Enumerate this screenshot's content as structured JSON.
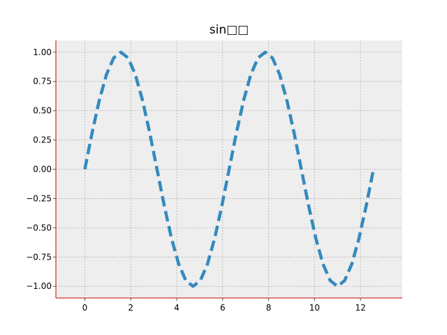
{
  "chart_data": {
    "type": "line",
    "title": "sin□□",
    "xlabel": "",
    "ylabel": "",
    "xlim": [
      -1.26,
      13.82
    ],
    "ylim": [
      -1.1,
      1.1
    ],
    "x_ticks": [
      0,
      2,
      4,
      6,
      8,
      10,
      12
    ],
    "x_tick_labels": [
      "0",
      "2",
      "4",
      "6",
      "8",
      "10",
      "12"
    ],
    "y_ticks": [
      -1.0,
      -0.75,
      -0.5,
      -0.25,
      0.0,
      0.25,
      0.5,
      0.75,
      1.0
    ],
    "y_tick_labels": [
      "−1.00",
      "−0.75",
      "−0.50",
      "−0.25",
      "0.00",
      "0.25",
      "0.50",
      "0.75",
      "1.00"
    ],
    "grid": true,
    "line_style": "dashed",
    "series": [
      {
        "color": "#348abd",
        "x": [
          0.0,
          0.314,
          0.628,
          0.942,
          1.257,
          1.571,
          1.885,
          2.199,
          2.513,
          2.827,
          3.142,
          3.456,
          3.77,
          4.084,
          4.398,
          4.712,
          5.027,
          5.341,
          5.655,
          5.969,
          6.283,
          6.597,
          6.912,
          7.226,
          7.54,
          7.854,
          8.168,
          8.482,
          8.796,
          9.111,
          9.425,
          9.739,
          10.053,
          10.367,
          10.681,
          10.996,
          11.31,
          11.624,
          11.938,
          12.252,
          12.566
        ],
        "values": [
          0.0,
          0.309,
          0.588,
          0.809,
          0.951,
          1.0,
          0.951,
          0.809,
          0.588,
          0.309,
          0.0,
          -0.309,
          -0.588,
          -0.809,
          -0.951,
          -1.0,
          -0.951,
          -0.809,
          -0.588,
          -0.309,
          0.0,
          0.309,
          0.588,
          0.809,
          0.951,
          1.0,
          0.951,
          0.809,
          0.588,
          0.309,
          0.0,
          -0.309,
          -0.588,
          -0.809,
          -0.951,
          -1.0,
          -0.951,
          -0.809,
          -0.588,
          -0.309,
          0.0
        ]
      }
    ],
    "colors": {
      "plot_background": "#eeeeee",
      "grid": "#b0b0b0",
      "spine": "#cc0000",
      "line": "#348abd"
    }
  }
}
